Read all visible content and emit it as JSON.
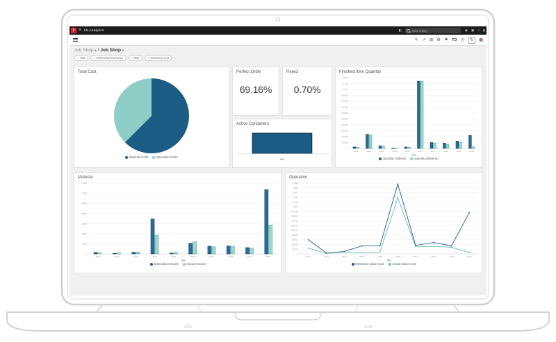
{
  "window": {
    "brand": "LN Analytics",
    "logo_letter": "i",
    "grid_glyph": "⠿",
    "search_placeholder": "Start Typing",
    "topbar_icons": [
      {
        "name": "notifications",
        "glyph": "◧"
      },
      {
        "name": "user",
        "glyph": "◉"
      },
      {
        "name": "camera",
        "glyph": "▣"
      },
      {
        "name": "share",
        "glyph": "<"
      },
      {
        "name": "bookmark",
        "glyph": "▮"
      }
    ]
  },
  "toolbar": {
    "right_icons": [
      {
        "name": "edit",
        "glyph": "✎"
      },
      {
        "name": "send",
        "glyph": "↗"
      },
      {
        "name": "copy",
        "glyph": "⊞"
      },
      {
        "name": "settings",
        "glyph": "⚙"
      },
      {
        "name": "flag",
        "glyph": "⚑"
      },
      {
        "name": "to",
        "glyph": "TO"
      },
      {
        "name": "history",
        "glyph": "◷"
      },
      {
        "name": "refresh",
        "glyph": "↻"
      },
      {
        "name": "apps",
        "glyph": "▦"
      }
    ]
  },
  "breadcrumb": {
    "parent": "Job Shop",
    "separator": "/",
    "current": "Job Shop",
    "caret": "▾"
  },
  "filters": [
    {
      "remove": "×",
      "label": "306"
    },
    {
      "remove": "×",
      "label": "Reference Currency"
    },
    {
      "remove": "×",
      "label": "900"
    },
    {
      "remove": "×",
      "label": "Inventory Unit"
    }
  ],
  "colors": {
    "primary_blue": "#1d5c85",
    "teal": "#8fcec6",
    "brand_red": "#d8232a",
    "axis_label": "#2d7ca6"
  },
  "cards": {
    "total_cost": {
      "title": "Total Cost"
    },
    "perfect_order": {
      "title": "Perfect Order",
      "value": "69.16%"
    },
    "reject": {
      "title": "Reject",
      "value": "0.70%"
    },
    "active_containers": {
      "title": "Active Containers"
    },
    "finished_item_quantity": {
      "title": "Finished Item Quantity"
    },
    "material": {
      "title": "Material"
    },
    "operation": {
      "title": "Operation"
    }
  },
  "chart_data": [
    {
      "type": "pie",
      "title": "Total Cost",
      "labels": [
        "Material Costs",
        "Operation Costs"
      ],
      "values": [
        62.5,
        37.5
      ],
      "colors": [
        "#1d5c85",
        "#8fcec6"
      ],
      "legend_position": "bottom"
    },
    {
      "type": "bar",
      "title": "Active Containers",
      "categories": [
        "900"
      ],
      "values": [
        900
      ],
      "ylim": [
        0,
        1000
      ],
      "color": "#1d5c85",
      "stroke": "#123d5d"
    },
    {
      "type": "grouped-bar",
      "title": "Finished Item Quantity",
      "categories": [
        "2011",
        "2012",
        "2013",
        "2014",
        "2015",
        "2016",
        "2017",
        "2018",
        "2019",
        "2020"
      ],
      "series": [
        {
          "name": "Quantity Ordered",
          "color": "#1d5c85",
          "fill": "#2a6d96",
          "stroke": "#123d5d",
          "values": [
            25,
            240,
            45,
            8,
            25,
            1140,
            100,
            90,
            125,
            220
          ]
        },
        {
          "name": "Quantity Delivered",
          "color": "#8fcec6",
          "fill": "#9ed8d0",
          "stroke": "#4aa59d",
          "values": [
            20,
            230,
            38,
            8,
            20,
            1140,
            90,
            70,
            105,
            28
          ]
        }
      ],
      "xlabel": "Year",
      "ylim": [
        0,
        1200
      ],
      "ytick": 100,
      "grid": true,
      "legend_position": "bottom"
    },
    {
      "type": "grouped-bar",
      "title": "Material",
      "categories": [
        "2011",
        "2012",
        "2013",
        "2014",
        "2015",
        "2016",
        "2017",
        "2018",
        "2019",
        "2020"
      ],
      "series": [
        {
          "name": "Estimated Amount",
          "color": "#1d5c85",
          "fill": "#2a6d96",
          "stroke": "#123d5d",
          "values": [
            150,
            60,
            160,
            3450,
            80,
            1050,
            760,
            790,
            620,
            6350
          ]
        },
        {
          "name": "Actual Amount",
          "color": "#8fcec6",
          "fill": "#9ed8d0",
          "stroke": "#4aa59d",
          "values": [
            100,
            90,
            180,
            1850,
            140,
            1200,
            700,
            780,
            570,
            2850
          ]
        }
      ],
      "xlabel": "Year",
      "ylim": [
        0,
        7000
      ],
      "ytick": 1000,
      "grid": true,
      "legend_position": "bottom"
    },
    {
      "type": "line",
      "title": "Operation",
      "categories": [
        "2011",
        "2012",
        "2013",
        "2014",
        "2015",
        "2016",
        "2017",
        "2018",
        "2019",
        "2020"
      ],
      "series": [
        {
          "name": "Estimated Labor Cost",
          "color": "#1d5c85",
          "values": [
            300,
            20,
            50,
            170,
            170,
            1480,
            180,
            240,
            170,
            870
          ]
        },
        {
          "name": "Actual Labor Cost",
          "color": "#63bdb4",
          "values": [
            120,
            10,
            40,
            25,
            35,
            1190,
            150,
            160,
            140,
            30
          ]
        }
      ],
      "xlabel": "Year",
      "ylim": [
        0,
        1500
      ],
      "ytick": 100,
      "grid": true,
      "legend_position": "bottom"
    }
  ]
}
